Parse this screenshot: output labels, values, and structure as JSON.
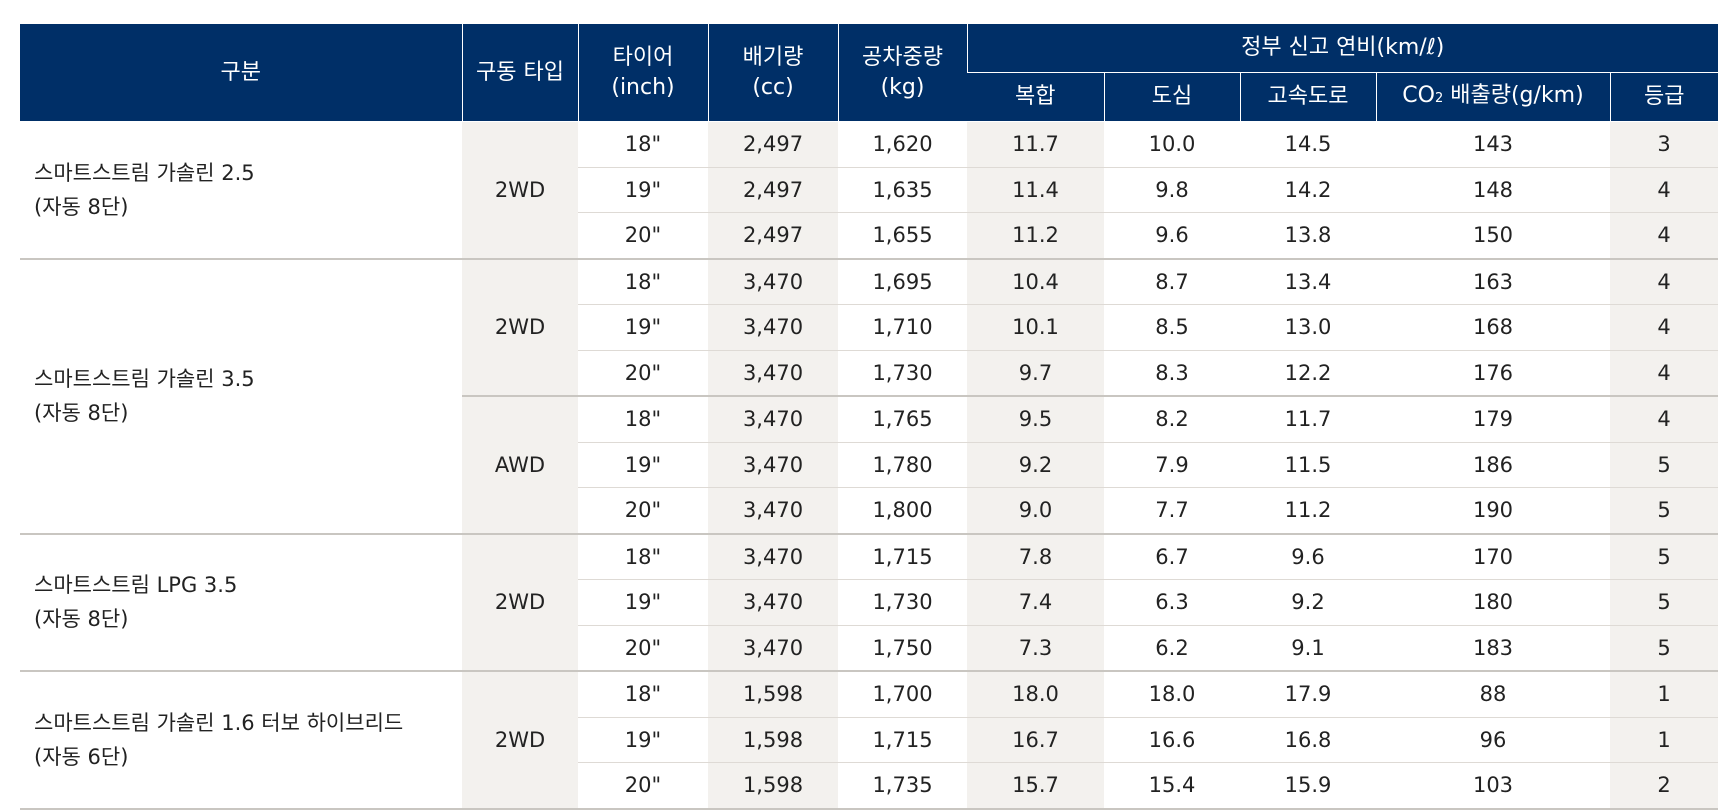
{
  "header": {
    "category": "구분",
    "drive_type": "구동 타입",
    "tire": "타이어",
    "tire_unit": "(inch)",
    "displacement": "배기량",
    "displacement_unit": "(cc)",
    "curb_weight": "공차중량",
    "curb_weight_unit": "(kg)",
    "fuel_economy_group": "정부 신고 연비(km/ℓ)",
    "combined": "복합",
    "city": "도심",
    "highway": "고속도로",
    "co2_prefix": "CO",
    "co2_sub": "2",
    "co2_suffix": " 배출량(g/km)",
    "grade": "등급"
  },
  "models": [
    {
      "name_line1": "스마트스트림 가솔린 2.5",
      "name_line2": "(자동 8단)",
      "drives": [
        {
          "drive": "2WD",
          "rows": [
            {
              "tire": "18\"",
              "cc": "2,497",
              "kg": "1,620",
              "combined": "11.7",
              "city": "10.0",
              "highway": "14.5",
              "co2": "143",
              "grade": "3"
            },
            {
              "tire": "19\"",
              "cc": "2,497",
              "kg": "1,635",
              "combined": "11.4",
              "city": "9.8",
              "highway": "14.2",
              "co2": "148",
              "grade": "4"
            },
            {
              "tire": "20\"",
              "cc": "2,497",
              "kg": "1,655",
              "combined": "11.2",
              "city": "9.6",
              "highway": "13.8",
              "co2": "150",
              "grade": "4"
            }
          ]
        }
      ]
    },
    {
      "name_line1": "스마트스트림 가솔린 3.5",
      "name_line2": "(자동 8단)",
      "drives": [
        {
          "drive": "2WD",
          "rows": [
            {
              "tire": "18\"",
              "cc": "3,470",
              "kg": "1,695",
              "combined": "10.4",
              "city": "8.7",
              "highway": "13.4",
              "co2": "163",
              "grade": "4"
            },
            {
              "tire": "19\"",
              "cc": "3,470",
              "kg": "1,710",
              "combined": "10.1",
              "city": "8.5",
              "highway": "13.0",
              "co2": "168",
              "grade": "4"
            },
            {
              "tire": "20\"",
              "cc": "3,470",
              "kg": "1,730",
              "combined": "9.7",
              "city": "8.3",
              "highway": "12.2",
              "co2": "176",
              "grade": "4"
            }
          ]
        },
        {
          "drive": "AWD",
          "rows": [
            {
              "tire": "18\"",
              "cc": "3,470",
              "kg": "1,765",
              "combined": "9.5",
              "city": "8.2",
              "highway": "11.7",
              "co2": "179",
              "grade": "4"
            },
            {
              "tire": "19\"",
              "cc": "3,470",
              "kg": "1,780",
              "combined": "9.2",
              "city": "7.9",
              "highway": "11.5",
              "co2": "186",
              "grade": "5"
            },
            {
              "tire": "20\"",
              "cc": "3,470",
              "kg": "1,800",
              "combined": "9.0",
              "city": "7.7",
              "highway": "11.2",
              "co2": "190",
              "grade": "5"
            }
          ]
        }
      ]
    },
    {
      "name_line1": "스마트스트림 LPG 3.5",
      "name_line2": "(자동 8단)",
      "drives": [
        {
          "drive": "2WD",
          "rows": [
            {
              "tire": "18\"",
              "cc": "3,470",
              "kg": "1,715",
              "combined": "7.8",
              "city": "6.7",
              "highway": "9.6",
              "co2": "170",
              "grade": "5"
            },
            {
              "tire": "19\"",
              "cc": "3,470",
              "kg": "1,730",
              "combined": "7.4",
              "city": "6.3",
              "highway": "9.2",
              "co2": "180",
              "grade": "5"
            },
            {
              "tire": "20\"",
              "cc": "3,470",
              "kg": "1,750",
              "combined": "7.3",
              "city": "6.2",
              "highway": "9.1",
              "co2": "183",
              "grade": "5"
            }
          ]
        }
      ]
    },
    {
      "name_line1": "스마트스트림 가솔린 1.6 터보 하이브리드",
      "name_line2": "(자동 6단)",
      "drives": [
        {
          "drive": "2WD",
          "rows": [
            {
              "tire": "18\"",
              "cc": "1,598",
              "kg": "1,700",
              "combined": "18.0",
              "city": "18.0",
              "highway": "17.9",
              "co2": "88",
              "grade": "1"
            },
            {
              "tire": "19\"",
              "cc": "1,598",
              "kg": "1,715",
              "combined": "16.7",
              "city": "16.6",
              "highway": "16.8",
              "co2": "96",
              "grade": "1"
            },
            {
              "tire": "20\"",
              "cc": "1,598",
              "kg": "1,735",
              "combined": "15.7",
              "city": "15.4",
              "highway": "15.9",
              "co2": "103",
              "grade": "2"
            }
          ]
        }
      ]
    }
  ]
}
